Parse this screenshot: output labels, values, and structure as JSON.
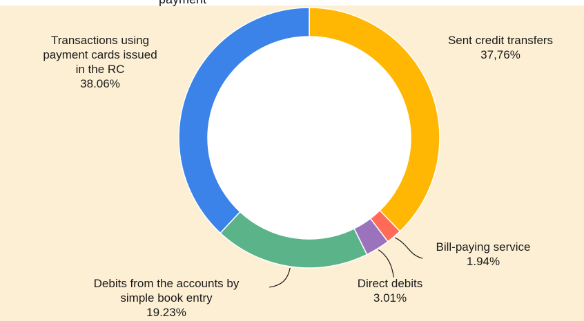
{
  "title_fragment": "payment",
  "colors": {
    "background": "#fcefd3",
    "blue": "#3b83e8",
    "yellow": "#ffb703",
    "red": "#ff6b57",
    "purple": "#9b73bd",
    "green": "#5bb489"
  },
  "chart_data": {
    "type": "pie",
    "donut": true,
    "slices": [
      {
        "label": "Sent credit transfers",
        "value": 37.76,
        "value_text": "37,76%",
        "color": "#ffb703"
      },
      {
        "label": "Bill-paying service",
        "value": 1.94,
        "value_text": "1.94%",
        "color": "#ff6b57"
      },
      {
        "label": "Direct debits",
        "value": 3.01,
        "value_text": "3.01%",
        "color": "#9b73bd"
      },
      {
        "label": "Debits from the accounts by simple book entry",
        "value": 19.23,
        "value_text": "19.23%",
        "color": "#5bb489"
      },
      {
        "label": "Transactions using payment cards issued in the RC",
        "value": 38.06,
        "value_text": "38.06%",
        "color": "#3b83e8"
      }
    ]
  }
}
